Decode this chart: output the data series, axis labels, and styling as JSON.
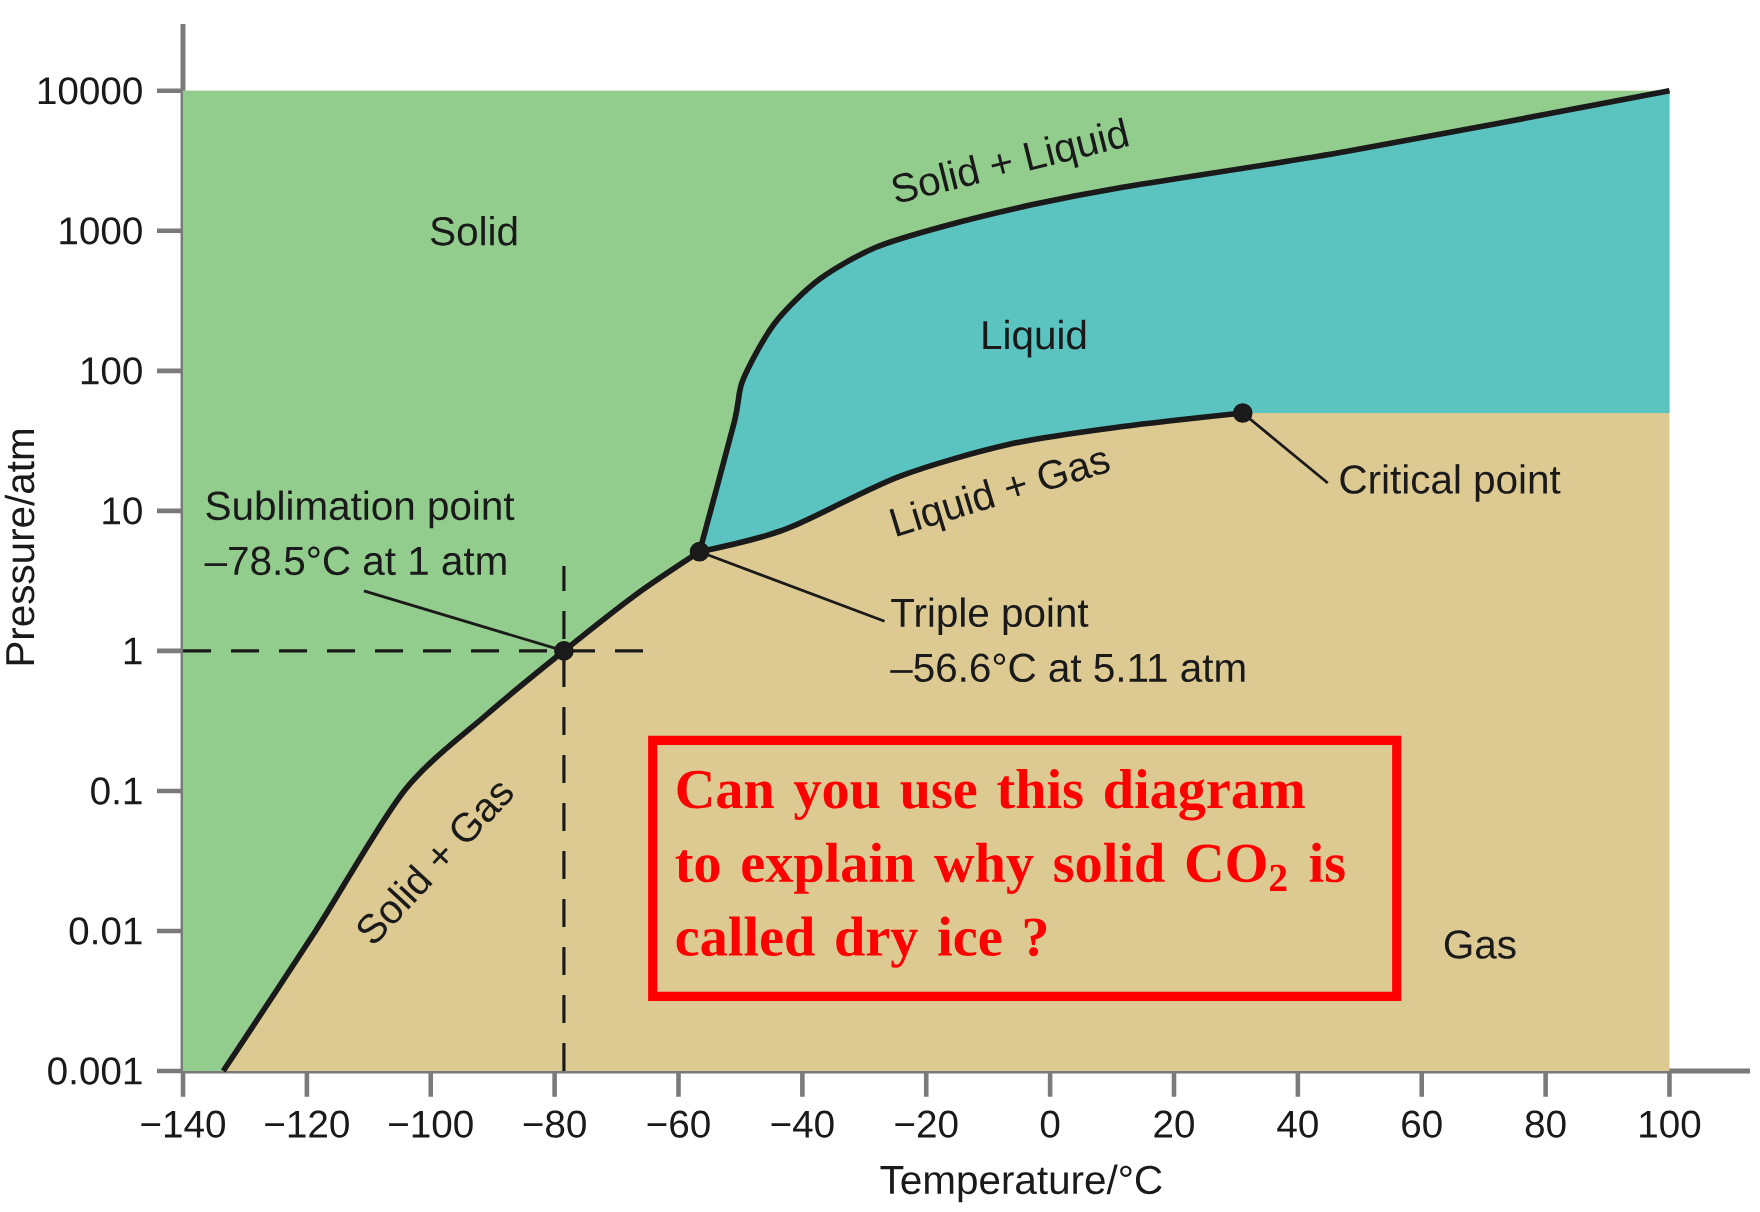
{
  "chart_data": {
    "type": "line",
    "xlabel": "Temperature/°C",
    "ylabel": "Pressure/atm",
    "log": "y",
    "xlim": [
      -140,
      113
    ],
    "ylim": [
      0.001,
      30000
    ],
    "xticks": [
      {
        "value": -140,
        "label": "−140"
      },
      {
        "value": -120,
        "label": "−120"
      },
      {
        "value": -100,
        "label": "−100"
      },
      {
        "value": -80,
        "label": "−80"
      },
      {
        "value": -60,
        "label": "−60"
      },
      {
        "value": -40,
        "label": "−40"
      },
      {
        "value": -20,
        "label": "−20"
      },
      0,
      20,
      40,
      60,
      80,
      100
    ],
    "yticks": [
      0.001,
      0.01,
      0.1,
      1,
      10,
      100,
      1000,
      10000
    ],
    "series": [
      {
        "name": "Solid + Gas",
        "color": "#1a1a1a",
        "x": [
          -133.5,
          -118.6,
          -104.3,
          -91,
          -78.5,
          -67,
          -56.6
        ],
        "values": [
          0.001,
          0.01,
          0.1,
          0.35,
          1,
          2.5,
          5.11
        ]
      },
      {
        "name": "Solid + Liquid",
        "color": "#1a1a1a",
        "x": [
          -56.6,
          -51,
          -49.6,
          -44.5,
          -37.2,
          -28.2,
          -17.3,
          -2.8,
          11.7,
          48,
          100
        ],
        "values": [
          5.11,
          43,
          86,
          218,
          452,
          760,
          1075,
          1540,
          2050,
          3700,
          10000
        ]
      },
      {
        "name": "Liquid + Gas",
        "color": "#1a1a1a",
        "x": [
          -56.6,
          -42.7,
          -24.5,
          -6.4,
          11.7,
          31.1
        ],
        "values": [
          5.11,
          7.4,
          17.5,
          30,
          40,
          50
        ]
      },
      {
        "type": "scatter",
        "marker": "circle",
        "color": "#1a1a1a",
        "x": [
          -78.5,
          -56.6,
          31.1
        ],
        "values": [
          1,
          5.11,
          50
        ]
      }
    ],
    "ref_lines": [
      {
        "axis": "x",
        "value": -78.5,
        "line_style": "dashed"
      },
      {
        "axis": "y",
        "value": 1,
        "line_style": "dashed"
      }
    ],
    "annotations": [
      "Sublimation point",
      {
        "text": "–78.5°C at 1 atm",
        "x": -78.5,
        "y": 1
      },
      {
        "text": "Triple point",
        "x": -56.6,
        "y": 5.11
      },
      "–56.6°C at 5.11 atm",
      {
        "text": "Critical point",
        "x": 31.1,
        "y": 50
      },
      "Solid",
      "Liquid",
      "Gas",
      "Can you use this diagram to explain why solid CO$_{2}$ is called dry ice ?"
    ]
  }
}
